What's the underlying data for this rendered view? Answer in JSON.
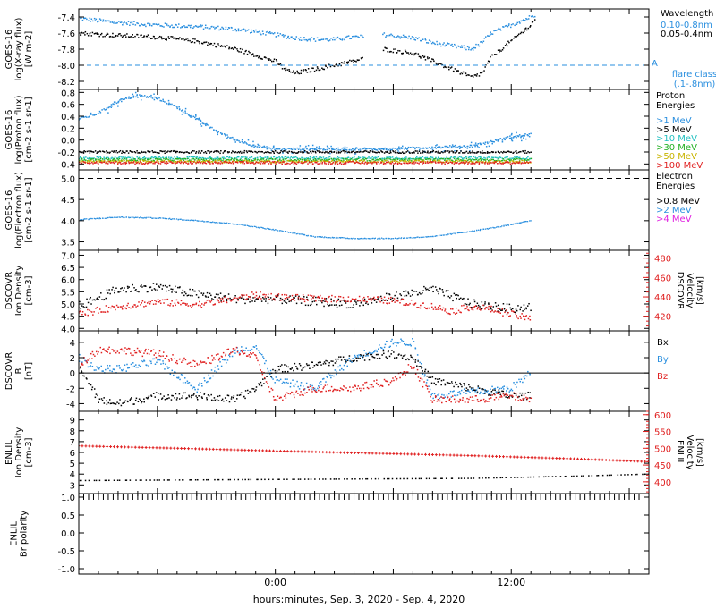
{
  "chart_data": {
    "type": "scatter",
    "xlabel": "hours:minutes, Sep.  3, 2020 - Sep.  4, 2020",
    "x_range_hours": [
      -10,
      19
    ],
    "x_tick_labels": [
      {
        "hour": 0,
        "label": "0:00"
      },
      {
        "hour": 12,
        "label": "12:00"
      }
    ],
    "panels": [
      {
        "id": "xray",
        "ylabel_lines": [
          "GOES-16",
          "log(X-ray flux)",
          "[W m-2]"
        ],
        "ylim": [
          -8.3,
          -7.3
        ],
        "y_ticks": [
          -8.2,
          -8.0,
          -7.8,
          -7.6,
          -7.4
        ],
        "y_tick_labels": [
          "-8.2",
          "-8.0",
          "-7.8",
          "-7.6",
          "-7.4"
        ],
        "legend_title": "Wavelength",
        "legend": [
          {
            "label": "0.10-0.8nm",
            "color": "#2a8fdf"
          },
          {
            "label": "0.05-0.4nm",
            "color": "#000000"
          }
        ],
        "reference_line": {
          "y": -8.0,
          "marker": "A",
          "label_lines": [
            "flare class",
            "(.1-.8nm)"
          ],
          "color": "#2a8fdf"
        },
        "series": [
          {
            "name": "0.10-0.8nm",
            "color": "#2a8fdf",
            "x": [
              -10,
              -8,
              -6,
              -4,
              -2,
              0,
              1,
              2,
              3,
              4,
              4.5
            ],
            "y": [
              -7.42,
              -7.47,
              -7.5,
              -7.52,
              -7.55,
              -7.62,
              -7.66,
              -7.68,
              -7.68,
              -7.65,
              -7.65
            ]
          },
          {
            "name": "0.10-0.8nm",
            "color": "#2a8fdf",
            "x": [
              5.5,
              7,
              8,
              9,
              10,
              10.5,
              11,
              12,
              13,
              13.2
            ],
            "y": [
              -7.62,
              -7.66,
              -7.72,
              -7.76,
              -7.8,
              -7.72,
              -7.6,
              -7.5,
              -7.4,
              -7.37
            ]
          },
          {
            "name": "0.05-0.4nm",
            "color": "#000000",
            "x": [
              -10,
              -8,
              -6,
              -4,
              -2,
              0,
              0.5,
              1,
              2,
              3,
              4,
              4.5
            ],
            "y": [
              -7.6,
              -7.63,
              -7.65,
              -7.7,
              -7.8,
              -7.95,
              -8.05,
              -8.1,
              -8.05,
              -8.0,
              -7.95,
              -7.92
            ]
          },
          {
            "name": "0.05-0.4nm",
            "color": "#000000",
            "x": [
              5.5,
              7,
              8,
              9,
              10,
              10.5,
              11,
              12,
              13,
              13.2
            ],
            "y": [
              -7.8,
              -7.85,
              -7.95,
              -8.05,
              -8.15,
              -8.1,
              -7.9,
              -7.7,
              -7.5,
              -7.42
            ]
          }
        ]
      },
      {
        "id": "proton",
        "ylabel_lines": [
          "GOES-16",
          "log(Proton flux)",
          "[cm-2 s-1 sr-1]"
        ],
        "ylim": [
          -0.5,
          0.85
        ],
        "y_ticks": [
          -0.4,
          -0.2,
          0.0,
          0.2,
          0.4,
          0.6,
          0.8
        ],
        "y_tick_labels": [
          "-0.4",
          "-0.2",
          "0.0",
          "0.2",
          "0.4",
          "0.6",
          "0.8"
        ],
        "legend_title_lines": [
          "Proton",
          "Energies"
        ],
        "legend": [
          {
            "label": ">1 MeV",
            "color": "#2a8fdf"
          },
          {
            "label": ">5 MeV",
            "color": "#000000"
          },
          {
            "label": ">10 MeV",
            "color": "#22c0c0"
          },
          {
            "label": ">30 MeV",
            "color": "#22b022"
          },
          {
            "label": ">50 MeV",
            "color": "#c8b400"
          },
          {
            "label": ">100 MeV",
            "color": "#e02020"
          }
        ],
        "series": [
          {
            "name": ">1 MeV",
            "color": "#2a8fdf",
            "x": [
              -10,
              -9,
              -8,
              -7,
              -6,
              -5,
              -4,
              -3,
              -2,
              -1,
              0,
              2,
              4,
              6,
              8,
              10,
              12,
              13
            ],
            "y": [
              0.35,
              0.45,
              0.65,
              0.75,
              0.7,
              0.55,
              0.35,
              0.15,
              0.0,
              -0.1,
              -0.15,
              -0.15,
              -0.15,
              -0.15,
              -0.12,
              -0.1,
              0.05,
              0.1
            ]
          },
          {
            "name": ">5 MeV",
            "color": "#000000",
            "x": [
              -10,
              -5,
              0,
              5,
              10,
              13
            ],
            "y": [
              -0.2,
              -0.2,
              -0.2,
              -0.2,
              -0.2,
              -0.2
            ]
          },
          {
            "name": ">10 MeV",
            "color": "#22c0c0",
            "x": [
              -10,
              -5,
              0,
              5,
              10,
              13
            ],
            "y": [
              -0.3,
              -0.3,
              -0.3,
              -0.3,
              -0.3,
              -0.3
            ]
          },
          {
            "name": ">30 MeV",
            "color": "#22b022",
            "x": [
              -10,
              -5,
              0,
              5,
              10,
              13
            ],
            "y": [
              -0.33,
              -0.33,
              -0.33,
              -0.33,
              -0.33,
              -0.33
            ]
          },
          {
            "name": ">50 MeV",
            "color": "#c8b400",
            "x": [
              -10,
              -5,
              0,
              5,
              10,
              13
            ],
            "y": [
              -0.36,
              -0.36,
              -0.36,
              -0.36,
              -0.36,
              -0.36
            ]
          },
          {
            "name": ">100 MeV",
            "color": "#e02020",
            "x": [
              -10,
              -5,
              0,
              5,
              10,
              13
            ],
            "y": [
              -0.38,
              -0.38,
              -0.38,
              -0.38,
              -0.38,
              -0.38
            ]
          }
        ]
      },
      {
        "id": "electron",
        "ylabel_lines": [
          "GOES-16",
          "log(Electron flux)",
          "[cm-2 s-1 sr-1]"
        ],
        "ylim": [
          3.3,
          5.2
        ],
        "y_ticks": [
          3.5,
          4.0,
          4.5,
          5.0
        ],
        "y_tick_labels": [
          "3.5",
          "4.0",
          "4.5",
          "5.0"
        ],
        "legend_title_lines": [
          "Electron",
          "Energies"
        ],
        "legend": [
          {
            "label": ">0.8 MeV",
            "color": "#000000"
          },
          {
            "label": ">2 MeV",
            "color": "#2a8fdf"
          },
          {
            "label": ">4 MeV",
            "color": "#e020e0"
          }
        ],
        "dashed_line": {
          "y": 5.0
        },
        "series": [
          {
            "name": ">2 MeV",
            "color": "#2a8fdf",
            "x": [
              -10,
              -8,
              -6,
              -4,
              -2,
              0,
              2,
              4,
              6,
              8,
              10,
              12,
              13
            ],
            "y": [
              4.02,
              4.08,
              4.06,
              4.0,
              3.92,
              3.78,
              3.62,
              3.58,
              3.58,
              3.62,
              3.75,
              3.9,
              4.0
            ]
          }
        ]
      },
      {
        "id": "dscovr_density",
        "ylabel_lines": [
          "DSCOVR",
          "Ion Density",
          "[cm-3]"
        ],
        "ylabel_right_lines": [
          "DSCOVR",
          "Velocity",
          "[km/s]"
        ],
        "ylim": [
          3.9,
          7.2
        ],
        "y_ticks": [
          4.0,
          4.5,
          5.0,
          5.5,
          6.0,
          6.5,
          7.0
        ],
        "y_tick_labels": [
          "4.0",
          "4.5",
          "5.0",
          "5.5",
          "6.0",
          "6.5",
          "7.0"
        ],
        "y2lim": [
          405,
          488
        ],
        "y2_ticks": [
          420,
          440,
          460,
          480
        ],
        "y2_tick_labels": [
          "420",
          "440",
          "460",
          "480"
        ],
        "series": [
          {
            "name": "Ion Density",
            "color": "#000000",
            "axis": "left",
            "x": [
              -10,
              -8,
              -6,
              -4,
              -2,
              0,
              2,
              4,
              6,
              8,
              10,
              12,
              13
            ],
            "y": [
              4.9,
              5.6,
              5.7,
              5.4,
              5.2,
              5.2,
              5.1,
              5.0,
              5.3,
              5.6,
              5.0,
              4.8,
              4.9
            ]
          },
          {
            "name": "Velocity",
            "color": "#e02020",
            "axis": "right",
            "x": [
              -10,
              -8,
              -6,
              -4,
              -2,
              -1,
              0,
              2,
              4,
              6,
              8,
              9,
              10,
              11,
              12,
              13
            ],
            "y": [
              422,
              430,
              435,
              432,
              438,
              442,
              440,
              438,
              438,
              436,
              430,
              425,
              430,
              427,
              422,
              417
            ]
          }
        ]
      },
      {
        "id": "dscovr_b",
        "ylabel_lines": [
          "DSCOVR",
          "B",
          "[nT]"
        ],
        "ylim": [
          -5.0,
          5.5
        ],
        "y_ticks": [
          -4,
          -2,
          0,
          2,
          4
        ],
        "y_tick_labels": [
          "-4",
          "-2",
          "0",
          "2",
          "4"
        ],
        "zero_line": true,
        "legend": [
          {
            "label": "Bx",
            "color": "#000000"
          },
          {
            "label": "By",
            "color": "#2a8fdf"
          },
          {
            "label": "Bz",
            "color": "#e02020"
          }
        ],
        "series": [
          {
            "name": "Bx",
            "color": "#000000",
            "x": [
              -10,
              -9,
              -8,
              -6,
              -4,
              -2,
              -1,
              0,
              2,
              4,
              6,
              7,
              8,
              10,
              12,
              13
            ],
            "y": [
              1.0,
              -3.5,
              -4.0,
              -3.0,
              -3.0,
              -3.5,
              -2.0,
              0.5,
              1.0,
              2.0,
              2.5,
              2.0,
              -1.0,
              -2.0,
              -3.0,
              -3.0
            ]
          },
          {
            "name": "By",
            "color": "#2a8fdf",
            "x": [
              -10,
              -9,
              -8,
              -6,
              -4,
              -2,
              -1,
              0,
              2,
              4,
              6,
              7,
              8,
              10,
              12,
              13
            ],
            "y": [
              2.0,
              0.5,
              0.5,
              1.5,
              -2.0,
              3.0,
              3.5,
              -1.0,
              -2.0,
              2.0,
              4.0,
              4.0,
              -3.0,
              -2.5,
              -2.0,
              0.0
            ]
          },
          {
            "name": "Bz",
            "color": "#e02020",
            "x": [
              -10,
              -9,
              -8,
              -6,
              -4,
              -2,
              -1,
              0,
              2,
              4,
              6,
              7,
              8,
              10,
              12,
              13
            ],
            "y": [
              1.0,
              3.0,
              3.0,
              2.5,
              1.0,
              3.0,
              2.0,
              -3.5,
              -2.0,
              -2.0,
              -1.0,
              1.0,
              -3.5,
              -3.5,
              -3.0,
              -3.5
            ]
          }
        ]
      },
      {
        "id": "enlil_density",
        "ylabel_lines": [
          "ENLIL",
          "Ion Density",
          "[cm-3]"
        ],
        "ylabel_right_lines": [
          "ENLIL",
          "Velocity",
          "[km/s]"
        ],
        "ylim": [
          2.2,
          9.8
        ],
        "y_ticks": [
          3,
          4,
          5,
          6,
          7,
          8,
          9
        ],
        "y_tick_labels": [
          "3",
          "4",
          "5",
          "6",
          "7",
          "8",
          "9"
        ],
        "y2lim": [
          365,
          610
        ],
        "y2_ticks": [
          400,
          450,
          500,
          550,
          600
        ],
        "y2_tick_labels": [
          "400",
          "450",
          "500",
          "550",
          "600"
        ],
        "series": [
          {
            "name": "Velocity",
            "color": "#e02020",
            "axis": "right",
            "x": [
              -10,
              -5,
              0,
              5,
              10,
              15,
              19
            ],
            "y": [
              507,
              500,
              492,
              485,
              478,
              469,
              460
            ]
          },
          {
            "name": "Ion Density",
            "color": "#000000",
            "axis": "left",
            "x": [
              -10,
              -5,
              0,
              5,
              10,
              15,
              19
            ],
            "y": [
              3.4,
              3.45,
              3.5,
              3.55,
              3.6,
              3.8,
              4.0
            ]
          }
        ]
      },
      {
        "id": "enlil_polarity",
        "ylabel_lines": [
          "ENLIL",
          "Br polarity"
        ],
        "ylim": [
          -1.15,
          1.1
        ],
        "y_ticks": [
          -1.0,
          -0.5,
          0.0,
          0.5,
          1.0
        ],
        "y_tick_labels": [
          "-1.0",
          "-0.5",
          "0.0",
          "0.5",
          "1.0"
        ],
        "series": [
          {
            "name": "Br polarity",
            "color": "#000000",
            "x": [
              -10,
              19
            ],
            "y": [
              1.0,
              1.0
            ]
          }
        ]
      }
    ]
  }
}
